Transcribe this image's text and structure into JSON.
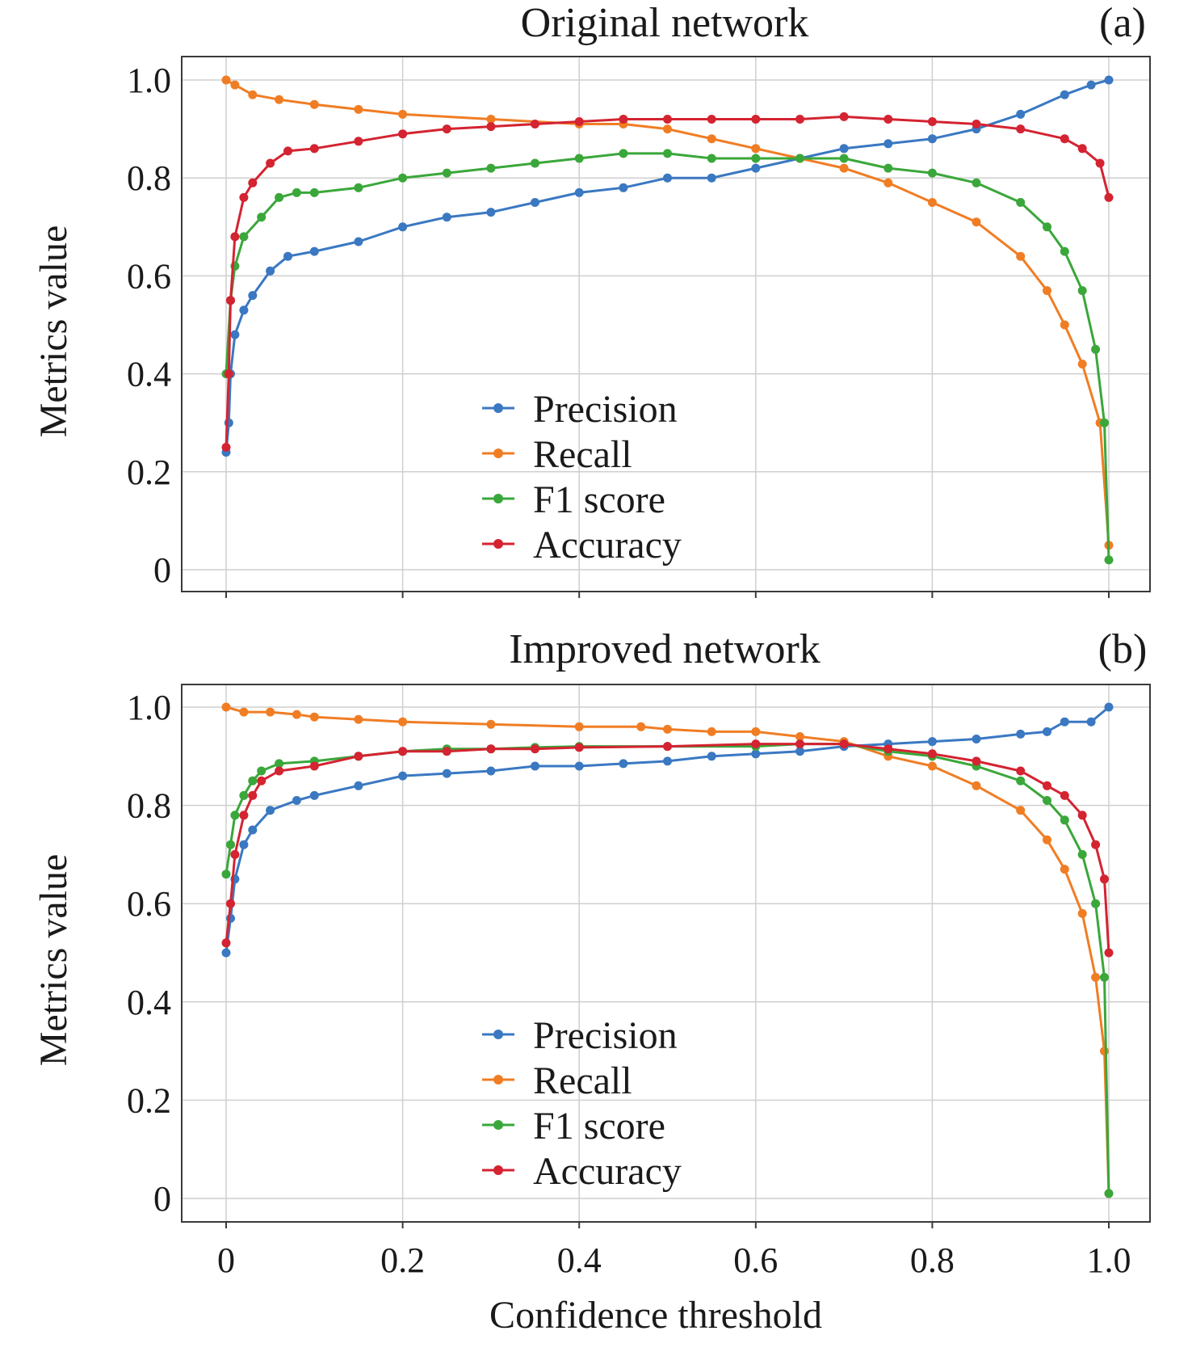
{
  "figure": {
    "xlabel": "Confidence threshold",
    "colors": {
      "Precision": "#3a78c2",
      "Recall": "#f07d24",
      "F1 score": "#3aa73a",
      "Accuracy": "#d42331"
    }
  },
  "chart_data": [
    {
      "type": "line",
      "title": "Original network",
      "panel_label": "(a)",
      "xlabel": "",
      "ylabel": "Metrics value",
      "xlim": [
        0,
        1.0
      ],
      "ylim": [
        0,
        1.0
      ],
      "xticks": [
        "0",
        "0.2",
        "0.4",
        "0.6",
        "0.8",
        "1.0"
      ],
      "yticks": [
        "0",
        "0.2",
        "0.4",
        "0.6",
        "0.8",
        "1.0"
      ],
      "x_tick_labels_shown": false,
      "grid": true,
      "legend": "bottom-center",
      "series": [
        {
          "name": "Precision",
          "color": "#3a78c2",
          "points": [
            [
              0.0,
              0.24
            ],
            [
              0.003,
              0.3
            ],
            [
              0.005,
              0.4
            ],
            [
              0.01,
              0.48
            ],
            [
              0.02,
              0.53
            ],
            [
              0.03,
              0.56
            ],
            [
              0.05,
              0.61
            ],
            [
              0.07,
              0.64
            ],
            [
              0.1,
              0.65
            ],
            [
              0.15,
              0.67
            ],
            [
              0.2,
              0.7
            ],
            [
              0.25,
              0.72
            ],
            [
              0.3,
              0.73
            ],
            [
              0.35,
              0.75
            ],
            [
              0.4,
              0.77
            ],
            [
              0.45,
              0.78
            ],
            [
              0.5,
              0.8
            ],
            [
              0.55,
              0.8
            ],
            [
              0.6,
              0.82
            ],
            [
              0.65,
              0.84
            ],
            [
              0.7,
              0.86
            ],
            [
              0.75,
              0.87
            ],
            [
              0.8,
              0.88
            ],
            [
              0.85,
              0.9
            ],
            [
              0.9,
              0.93
            ],
            [
              0.95,
              0.97
            ],
            [
              0.98,
              0.99
            ],
            [
              1.0,
              1.0
            ]
          ]
        },
        {
          "name": "Recall",
          "color": "#f07d24",
          "points": [
            [
              0.0,
              1.0
            ],
            [
              0.01,
              0.99
            ],
            [
              0.03,
              0.97
            ],
            [
              0.06,
              0.96
            ],
            [
              0.1,
              0.95
            ],
            [
              0.15,
              0.94
            ],
            [
              0.2,
              0.93
            ],
            [
              0.3,
              0.92
            ],
            [
              0.4,
              0.91
            ],
            [
              0.45,
              0.91
            ],
            [
              0.5,
              0.9
            ],
            [
              0.55,
              0.88
            ],
            [
              0.6,
              0.86
            ],
            [
              0.65,
              0.84
            ],
            [
              0.7,
              0.82
            ],
            [
              0.75,
              0.79
            ],
            [
              0.8,
              0.75
            ],
            [
              0.85,
              0.71
            ],
            [
              0.9,
              0.64
            ],
            [
              0.93,
              0.57
            ],
            [
              0.95,
              0.5
            ],
            [
              0.97,
              0.42
            ],
            [
              0.99,
              0.3
            ],
            [
              1.0,
              0.05
            ]
          ]
        },
        {
          "name": "F1 score",
          "color": "#3aa73a",
          "points": [
            [
              0.0,
              0.4
            ],
            [
              0.005,
              0.55
            ],
            [
              0.01,
              0.62
            ],
            [
              0.02,
              0.68
            ],
            [
              0.04,
              0.72
            ],
            [
              0.06,
              0.76
            ],
            [
              0.08,
              0.77
            ],
            [
              0.1,
              0.77
            ],
            [
              0.15,
              0.78
            ],
            [
              0.2,
              0.8
            ],
            [
              0.25,
              0.81
            ],
            [
              0.3,
              0.82
            ],
            [
              0.35,
              0.83
            ],
            [
              0.4,
              0.84
            ],
            [
              0.45,
              0.85
            ],
            [
              0.5,
              0.85
            ],
            [
              0.55,
              0.84
            ],
            [
              0.6,
              0.84
            ],
            [
              0.65,
              0.84
            ],
            [
              0.7,
              0.84
            ],
            [
              0.75,
              0.82
            ],
            [
              0.8,
              0.81
            ],
            [
              0.85,
              0.79
            ],
            [
              0.9,
              0.75
            ],
            [
              0.93,
              0.7
            ],
            [
              0.95,
              0.65
            ],
            [
              0.97,
              0.57
            ],
            [
              0.985,
              0.45
            ],
            [
              0.995,
              0.3
            ],
            [
              1.0,
              0.02
            ]
          ]
        },
        {
          "name": "Accuracy",
          "color": "#d42331",
          "points": [
            [
              0.0,
              0.25
            ],
            [
              0.003,
              0.4
            ],
            [
              0.005,
              0.55
            ],
            [
              0.01,
              0.68
            ],
            [
              0.02,
              0.76
            ],
            [
              0.03,
              0.79
            ],
            [
              0.05,
              0.83
            ],
            [
              0.07,
              0.855
            ],
            [
              0.1,
              0.86
            ],
            [
              0.15,
              0.875
            ],
            [
              0.2,
              0.89
            ],
            [
              0.25,
              0.9
            ],
            [
              0.3,
              0.905
            ],
            [
              0.35,
              0.91
            ],
            [
              0.4,
              0.915
            ],
            [
              0.45,
              0.92
            ],
            [
              0.5,
              0.92
            ],
            [
              0.55,
              0.92
            ],
            [
              0.6,
              0.92
            ],
            [
              0.65,
              0.92
            ],
            [
              0.7,
              0.925
            ],
            [
              0.75,
              0.92
            ],
            [
              0.8,
              0.915
            ],
            [
              0.85,
              0.91
            ],
            [
              0.9,
              0.9
            ],
            [
              0.95,
              0.88
            ],
            [
              0.97,
              0.86
            ],
            [
              0.99,
              0.83
            ],
            [
              1.0,
              0.76
            ]
          ]
        }
      ]
    },
    {
      "type": "line",
      "title": "Improved network",
      "panel_label": "(b)",
      "xlabel": "Confidence threshold",
      "ylabel": "Metrics value",
      "xlim": [
        0,
        1.0
      ],
      "ylim": [
        0,
        1.0
      ],
      "xticks": [
        "0",
        "0.2",
        "0.4",
        "0.6",
        "0.8",
        "1.0"
      ],
      "yticks": [
        "0",
        "0.2",
        "0.4",
        "0.6",
        "0.8",
        "1.0"
      ],
      "x_tick_labels_shown": true,
      "grid": true,
      "legend": "bottom-center",
      "series": [
        {
          "name": "Precision",
          "color": "#3a78c2",
          "points": [
            [
              0.0,
              0.5
            ],
            [
              0.005,
              0.57
            ],
            [
              0.01,
              0.65
            ],
            [
              0.02,
              0.72
            ],
            [
              0.03,
              0.75
            ],
            [
              0.05,
              0.79
            ],
            [
              0.08,
              0.81
            ],
            [
              0.1,
              0.82
            ],
            [
              0.15,
              0.84
            ],
            [
              0.2,
              0.86
            ],
            [
              0.25,
              0.865
            ],
            [
              0.3,
              0.87
            ],
            [
              0.35,
              0.88
            ],
            [
              0.4,
              0.88
            ],
            [
              0.45,
              0.885
            ],
            [
              0.5,
              0.89
            ],
            [
              0.55,
              0.9
            ],
            [
              0.6,
              0.905
            ],
            [
              0.65,
              0.91
            ],
            [
              0.7,
              0.92
            ],
            [
              0.75,
              0.925
            ],
            [
              0.8,
              0.93
            ],
            [
              0.85,
              0.935
            ],
            [
              0.9,
              0.945
            ],
            [
              0.93,
              0.95
            ],
            [
              0.95,
              0.97
            ],
            [
              0.98,
              0.97
            ],
            [
              1.0,
              1.0
            ]
          ]
        },
        {
          "name": "Recall",
          "color": "#f07d24",
          "points": [
            [
              0.0,
              1.0
            ],
            [
              0.02,
              0.99
            ],
            [
              0.05,
              0.99
            ],
            [
              0.08,
              0.985
            ],
            [
              0.1,
              0.98
            ],
            [
              0.15,
              0.975
            ],
            [
              0.2,
              0.97
            ],
            [
              0.3,
              0.965
            ],
            [
              0.4,
              0.96
            ],
            [
              0.47,
              0.96
            ],
            [
              0.5,
              0.955
            ],
            [
              0.55,
              0.95
            ],
            [
              0.6,
              0.95
            ],
            [
              0.65,
              0.94
            ],
            [
              0.7,
              0.93
            ],
            [
              0.75,
              0.9
            ],
            [
              0.8,
              0.88
            ],
            [
              0.85,
              0.84
            ],
            [
              0.9,
              0.79
            ],
            [
              0.93,
              0.73
            ],
            [
              0.95,
              0.67
            ],
            [
              0.97,
              0.58
            ],
            [
              0.985,
              0.45
            ],
            [
              0.995,
              0.3
            ],
            [
              1.0,
              0.01
            ]
          ]
        },
        {
          "name": "F1 score",
          "color": "#3aa73a",
          "points": [
            [
              0.0,
              0.66
            ],
            [
              0.005,
              0.72
            ],
            [
              0.01,
              0.78
            ],
            [
              0.02,
              0.82
            ],
            [
              0.03,
              0.85
            ],
            [
              0.04,
              0.87
            ],
            [
              0.06,
              0.885
            ],
            [
              0.1,
              0.89
            ],
            [
              0.15,
              0.9
            ],
            [
              0.2,
              0.91
            ],
            [
              0.25,
              0.915
            ],
            [
              0.3,
              0.915
            ],
            [
              0.35,
              0.918
            ],
            [
              0.4,
              0.92
            ],
            [
              0.5,
              0.92
            ],
            [
              0.6,
              0.92
            ],
            [
              0.65,
              0.925
            ],
            [
              0.7,
              0.925
            ],
            [
              0.75,
              0.91
            ],
            [
              0.8,
              0.9
            ],
            [
              0.85,
              0.88
            ],
            [
              0.9,
              0.85
            ],
            [
              0.93,
              0.81
            ],
            [
              0.95,
              0.77
            ],
            [
              0.97,
              0.7
            ],
            [
              0.985,
              0.6
            ],
            [
              0.995,
              0.45
            ],
            [
              1.0,
              0.01
            ]
          ]
        },
        {
          "name": "Accuracy",
          "color": "#d42331",
          "points": [
            [
              0.0,
              0.52
            ],
            [
              0.005,
              0.6
            ],
            [
              0.01,
              0.7
            ],
            [
              0.02,
              0.78
            ],
            [
              0.03,
              0.82
            ],
            [
              0.04,
              0.85
            ],
            [
              0.06,
              0.87
            ],
            [
              0.1,
              0.88
            ],
            [
              0.15,
              0.9
            ],
            [
              0.2,
              0.91
            ],
            [
              0.25,
              0.91
            ],
            [
              0.3,
              0.915
            ],
            [
              0.35,
              0.915
            ],
            [
              0.4,
              0.918
            ],
            [
              0.5,
              0.92
            ],
            [
              0.6,
              0.925
            ],
            [
              0.65,
              0.925
            ],
            [
              0.7,
              0.925
            ],
            [
              0.75,
              0.915
            ],
            [
              0.8,
              0.905
            ],
            [
              0.85,
              0.89
            ],
            [
              0.9,
              0.87
            ],
            [
              0.93,
              0.84
            ],
            [
              0.95,
              0.82
            ],
            [
              0.97,
              0.78
            ],
            [
              0.985,
              0.72
            ],
            [
              0.995,
              0.65
            ],
            [
              1.0,
              0.5
            ]
          ]
        }
      ]
    }
  ]
}
